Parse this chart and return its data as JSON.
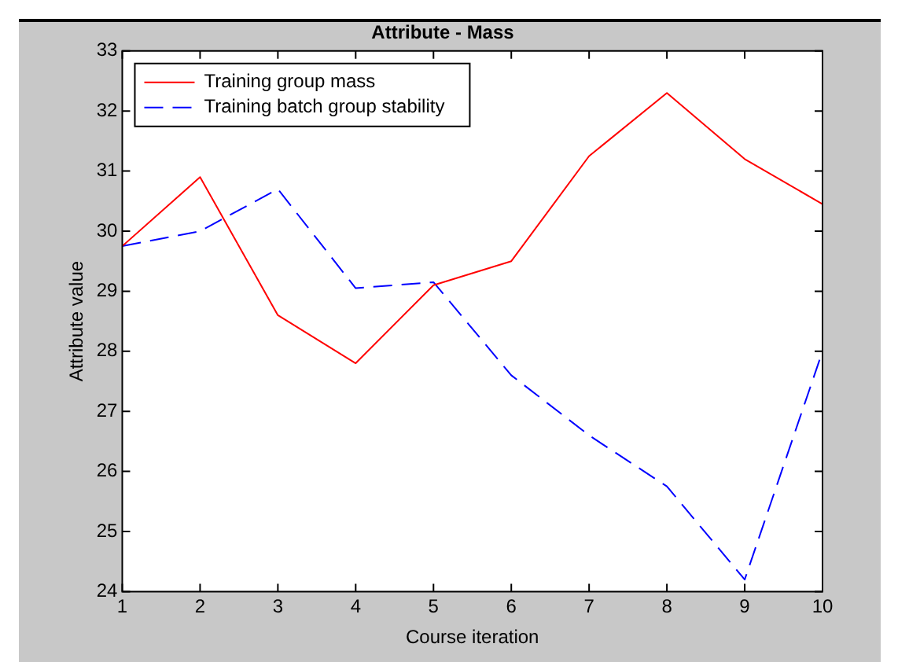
{
  "chart_data": {
    "type": "line",
    "title": "Attribute - Mass",
    "xlabel": "Course iteration",
    "ylabel": "Attribute value",
    "x": [
      1,
      2,
      3,
      4,
      5,
      6,
      7,
      8,
      9,
      10
    ],
    "series": [
      {
        "name": "Training group mass",
        "color": "#ff0000",
        "line_style": "solid",
        "values": [
          29.75,
          30.9,
          28.6,
          27.8,
          29.1,
          29.5,
          31.25,
          32.3,
          31.2,
          30.45
        ]
      },
      {
        "name": "Training batch group stability",
        "color": "#0000ff",
        "line_style": "dashed",
        "values": [
          29.75,
          30.0,
          30.7,
          29.05,
          29.15,
          27.6,
          26.6,
          25.75,
          24.2,
          28.0
        ]
      }
    ],
    "xlim": [
      1,
      10
    ],
    "xticks": [
      1,
      2,
      3,
      4,
      5,
      6,
      7,
      8,
      9,
      10
    ],
    "ylim": [
      24,
      33
    ],
    "yticks": [
      24,
      25,
      26,
      27,
      28,
      29,
      30,
      31,
      32,
      33
    ],
    "grid": false,
    "legend": "top left",
    "marker": "none"
  }
}
